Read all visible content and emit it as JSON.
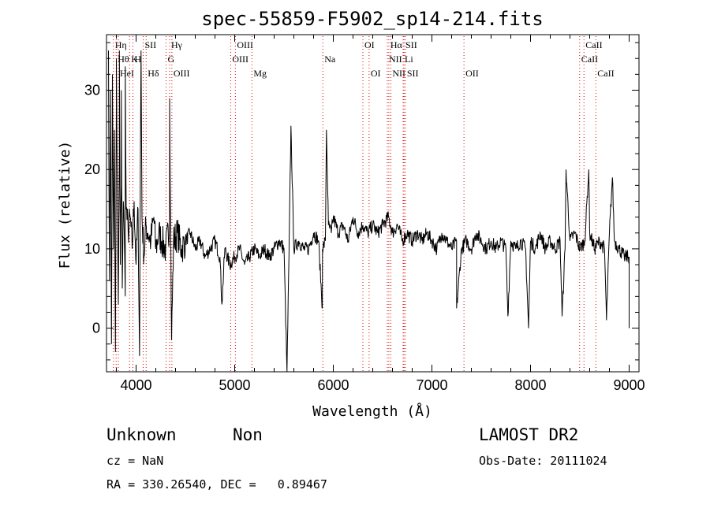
{
  "chart_data": {
    "type": "line",
    "title": "spec-55859-F5902_sp14-214.fits",
    "xlabel": "Wavelength (Å)",
    "ylabel": "Flux (relative)",
    "xlim": [
      3700,
      9100
    ],
    "ylim": [
      -5.5,
      37
    ],
    "xticks": [
      4000,
      5000,
      6000,
      7000,
      8000,
      9000
    ],
    "yticks": [
      0,
      10,
      20,
      30
    ],
    "grid": false,
    "series": [
      {
        "color": "#000000",
        "x": [
          3720,
          3730,
          3740,
          3750,
          3760,
          3770,
          3780,
          3790,
          3800,
          3810,
          3820,
          3830,
          3840,
          3850,
          3860,
          3870,
          3880,
          3890,
          3900,
          3920,
          3940,
          3960,
          3980,
          4000,
          4020,
          4040,
          4060,
          4080,
          4100,
          4120,
          4150,
          4180,
          4200,
          4230,
          4260,
          4300,
          4340,
          4380,
          4420,
          4460,
          4500,
          4550,
          4600,
          4650,
          4700,
          4750,
          4800,
          4850,
          4900,
          4950,
          5000,
          5050,
          5100,
          5150,
          5200,
          5250,
          5300,
          5350,
          5400,
          5450,
          5500,
          5550,
          5600,
          5650,
          5700,
          5750,
          5800,
          5850,
          5890,
          5920,
          5950,
          5980,
          6000,
          6050,
          6100,
          6150,
          6200,
          6250,
          6300,
          6350,
          6400,
          6450,
          6500,
          6560,
          6600,
          6650,
          6700,
          6750,
          6800,
          6850,
          6900,
          6950,
          7000,
          7050,
          7100,
          7150,
          7200,
          7250,
          7300,
          7350,
          7400,
          7450,
          7500,
          7550,
          7600,
          7650,
          7700,
          7750,
          7800,
          7850,
          7900,
          7950,
          8000,
          8050,
          8100,
          8150,
          8200,
          8250,
          8300,
          8350,
          8400,
          8450,
          8500,
          8550,
          8600,
          8650,
          8700,
          8750,
          8800,
          8850,
          8900,
          8950,
          9000
        ],
        "y": [
          35,
          6,
          30,
          -2,
          32,
          10,
          25,
          -3,
          28,
          15,
          3,
          22,
          8,
          18,
          5,
          16,
          12,
          4,
          15,
          12,
          14,
          10,
          16,
          8,
          15,
          11,
          14,
          9,
          13,
          12,
          11,
          14,
          10,
          12,
          11,
          10,
          13,
          11,
          12,
          10,
          11,
          12,
          10,
          11,
          9,
          10,
          11,
          9,
          10,
          8,
          9,
          10,
          8,
          9,
          10,
          9,
          10,
          9,
          10,
          11,
          10,
          9,
          10,
          11,
          10,
          10,
          12,
          11,
          10,
          11,
          13,
          12,
          14,
          12,
          13,
          11,
          14,
          12,
          13,
          12,
          13,
          12,
          13,
          14,
          12,
          13,
          11,
          12,
          11,
          12,
          11,
          12,
          11,
          10,
          12,
          11,
          10,
          11,
          10,
          11,
          10,
          12,
          11,
          10,
          11,
          10,
          11,
          10,
          11,
          10,
          11,
          10,
          11,
          10,
          12,
          10,
          11,
          10,
          11,
          10,
          11,
          12,
          10,
          11,
          12,
          10,
          11,
          10,
          12,
          11,
          10,
          9,
          9
        ]
      }
    ],
    "features": [
      {
        "x": 3800,
        "y": 34
      },
      {
        "x": 3830,
        "y": 35
      },
      {
        "x": 3850,
        "y": 30
      },
      {
        "x": 3890,
        "y": 33
      },
      {
        "x": 4035,
        "y": -3.5
      },
      {
        "x": 4050,
        "y": 35
      },
      {
        "x": 4340,
        "y": 29
      },
      {
        "x": 4360,
        "y": -1.5
      },
      {
        "x": 4870,
        "y": 3
      },
      {
        "x": 5530,
        "y": -5.5
      },
      {
        "x": 5570,
        "y": 25.5
      },
      {
        "x": 5889,
        "y": 2.5
      },
      {
        "x": 5930,
        "y": 25
      },
      {
        "x": 7250,
        "y": 2.5
      },
      {
        "x": 7770,
        "y": 1.5
      },
      {
        "x": 7980,
        "y": 0
      },
      {
        "x": 8320,
        "y": 1.5
      },
      {
        "x": 8360,
        "y": 20
      },
      {
        "x": 8590,
        "y": 20
      },
      {
        "x": 8770,
        "y": 1
      },
      {
        "x": 8830,
        "y": 19
      },
      {
        "x": 9000,
        "y": 0
      }
    ],
    "markers": [
      {
        "wavelength": 3770,
        "label": "Hη",
        "row": 0
      },
      {
        "wavelength": 3798,
        "label": "Hθ",
        "row": 1
      },
      {
        "wavelength": 3820,
        "label": "HeI",
        "row": 2
      },
      {
        "wavelength": 3934,
        "label": "K",
        "row": 1
      },
      {
        "wavelength": 3968,
        "label": "H",
        "row": 1
      },
      {
        "wavelength": 4072,
        "label": "SII",
        "row": 0
      },
      {
        "wavelength": 4102,
        "label": "Hδ",
        "row": 2
      },
      {
        "wavelength": 4304,
        "label": "G",
        "row": 1
      },
      {
        "wavelength": 4340,
        "label": "Hγ",
        "row": 0
      },
      {
        "wavelength": 4363,
        "label": "OIII",
        "row": 2
      },
      {
        "wavelength": 4959,
        "label": "OIII",
        "row": 1
      },
      {
        "wavelength": 5007,
        "label": "OIII",
        "row": 0
      },
      {
        "wavelength": 5175,
        "label": "Mg",
        "row": 2
      },
      {
        "wavelength": 5894,
        "label": "Na",
        "row": 1
      },
      {
        "wavelength": 6300,
        "label": "OI",
        "row": 0
      },
      {
        "wavelength": 6363,
        "label": "OI",
        "row": 2
      },
      {
        "wavelength": 6548,
        "label": "NII",
        "row": 1
      },
      {
        "wavelength": 6563,
        "label": "Hα",
        "row": 0
      },
      {
        "wavelength": 6583,
        "label": "NII",
        "row": 2
      },
      {
        "wavelength": 6708,
        "label": "Li",
        "row": 1
      },
      {
        "wavelength": 6717,
        "label": "SII",
        "row": 0
      },
      {
        "wavelength": 6731,
        "label": "SII",
        "row": 2
      },
      {
        "wavelength": 7325,
        "label": "OII",
        "row": 2
      },
      {
        "wavelength": 8498,
        "label": "CaII",
        "row": 1
      },
      {
        "wavelength": 8542,
        "label": "CaII",
        "row": 0
      },
      {
        "wavelength": 8662,
        "label": "CaII",
        "row": 2
      }
    ],
    "marker_color": "#e00000"
  },
  "info": {
    "class": "Unknown",
    "subclass": "Non",
    "survey": "LAMOST DR2",
    "cz": "cz = NaN",
    "obs_date": "Obs-Date: 20111024",
    "radec": "RA = 330.26540, DEC =   0.89467"
  }
}
